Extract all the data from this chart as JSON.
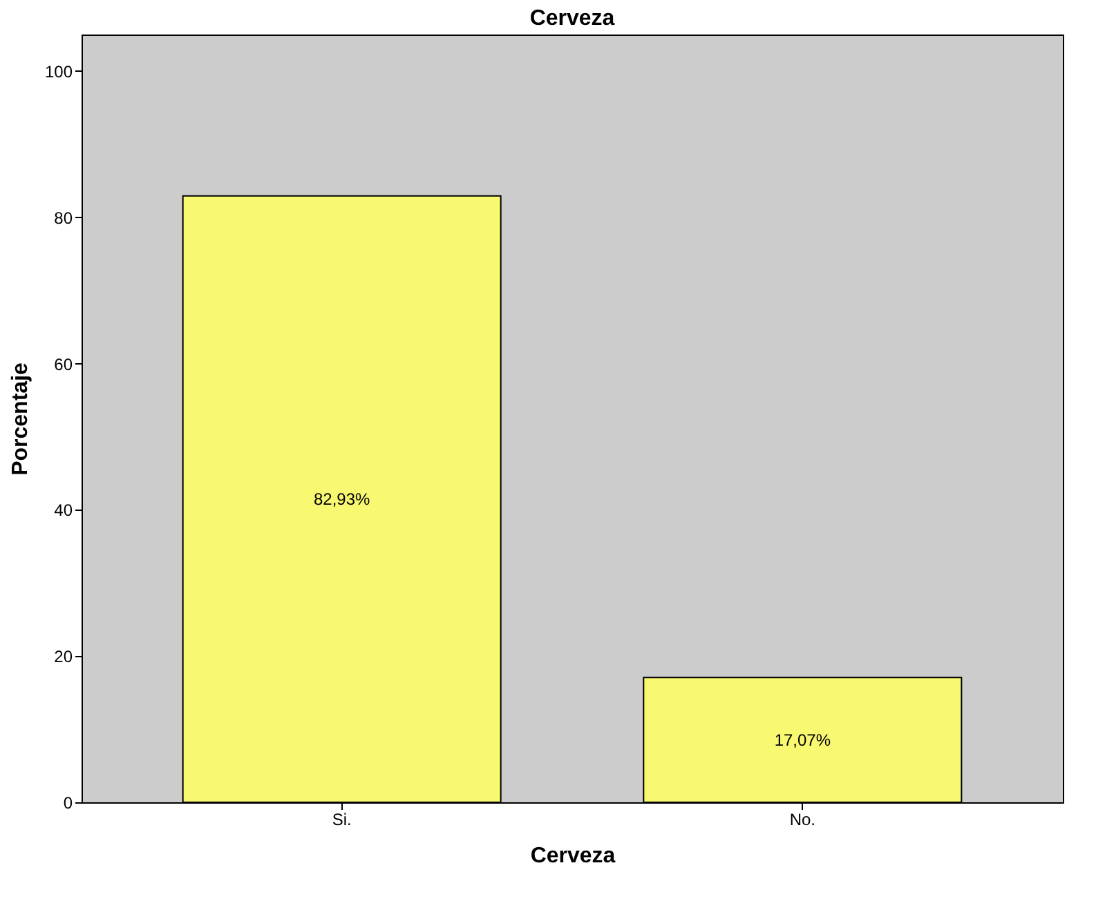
{
  "chart_data": {
    "type": "bar",
    "title": "Cerveza",
    "xlabel": "Cerveza",
    "ylabel": "Porcentaje",
    "categories": [
      "Si.",
      "No."
    ],
    "values": [
      82.93,
      17.07
    ],
    "value_labels": [
      "82,93%",
      "17,07%"
    ],
    "color": "#f8f871",
    "ylim": [
      0,
      105
    ],
    "yticks": [
      0,
      20,
      40,
      60,
      80,
      100
    ],
    "grid": false
  }
}
